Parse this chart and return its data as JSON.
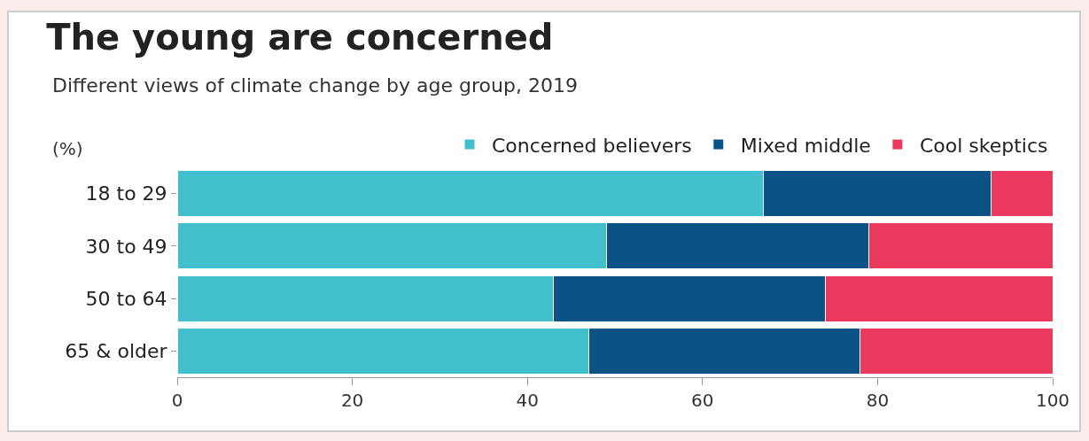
{
  "chart_data": {
    "type": "bar",
    "orientation": "horizontal",
    "stacked": true,
    "title": "The young are concerned",
    "subtitle": "Different views of climate change by age group, 2019",
    "ylabel": "(%)",
    "categories": [
      "18 to 29",
      "30 to 49",
      "50 to 64",
      "65 & older"
    ],
    "series": [
      {
        "name": "Concerned believers",
        "color": "#41bfcc",
        "values": [
          67,
          49,
          43,
          47
        ]
      },
      {
        "name": "Mixed middle",
        "color": "#0b5286",
        "values": [
          26,
          30,
          31,
          31
        ]
      },
      {
        "name": "Cool skeptics",
        "color": "#ec3a5e",
        "values": [
          7,
          21,
          26,
          22
        ]
      }
    ],
    "xlim": [
      0,
      100
    ],
    "xticks": [
      0,
      20,
      40,
      60,
      80,
      100
    ],
    "grid": false,
    "legend": "top"
  }
}
